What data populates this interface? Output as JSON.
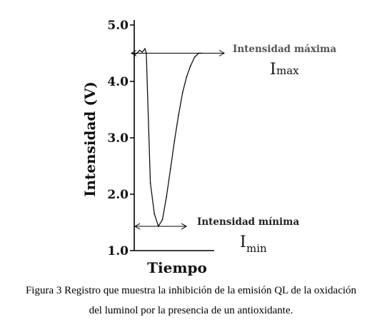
{
  "chart_data": {
    "type": "line",
    "title": "",
    "xlabel": "Tiempo",
    "ylabel": "Intensidad (V)",
    "ylim": [
      1.0,
      5.0
    ],
    "yticks": [
      "1.0",
      "2.0",
      "3.0",
      "4.0",
      "5.0"
    ],
    "xticks": [],
    "grid": false,
    "series": [
      {
        "name": "",
        "x": [
          0,
          0.4,
          0.8,
          1.2,
          1.6,
          1.8,
          2.4,
          3.0,
          3.6,
          4.2,
          4.8,
          5.4,
          6.0,
          6.6,
          7.2,
          7.8,
          8.4,
          9.0,
          9.6,
          10.0
        ],
        "y": [
          4.47,
          4.5,
          4.55,
          4.52,
          4.58,
          4.5,
          2.2,
          1.65,
          1.43,
          1.55,
          1.95,
          2.45,
          2.95,
          3.4,
          3.8,
          4.08,
          4.28,
          4.43,
          4.5,
          4.5
        ]
      }
    ],
    "annotations": {
      "max_label": "Intensidad máxima",
      "max_symbol": "I",
      "max_subscript": "max",
      "max_level": 4.5,
      "min_label": "Intensidad mínima",
      "min_symbol": "I",
      "min_subscript": "min",
      "min_level": 1.43
    }
  },
  "caption": {
    "line1": "Figura 3 Registro que muestra la inhibición de la emisión QL de la oxidación",
    "line2": "del luminol por la presencia de un antioxidante."
  }
}
